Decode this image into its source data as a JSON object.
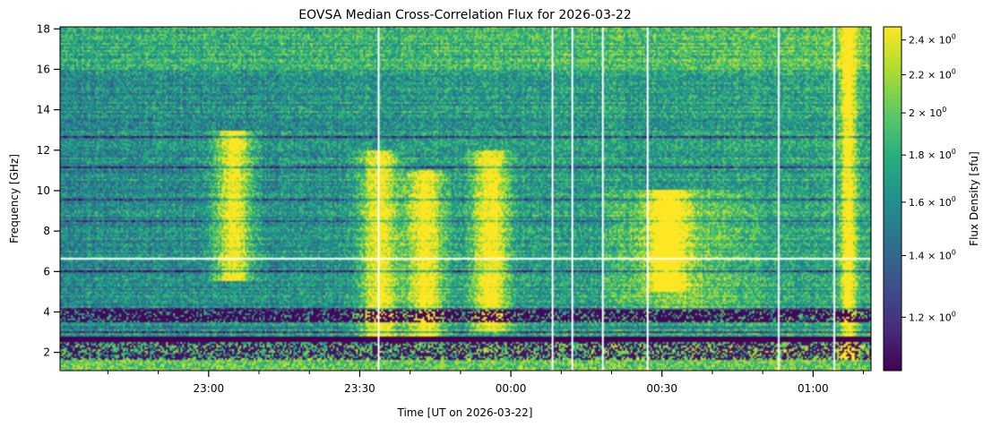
{
  "chart_data": {
    "type": "heatmap",
    "title": "EOVSA Median Cross-Correlation Flux for 2026-03-22",
    "xlabel": "Time [UT on 2026-03-22]",
    "ylabel": "Frequency [GHz]",
    "colorbar_label": "Flux Density [sfu]",
    "colormap": "viridis",
    "x_ticks": [
      {
        "label": "23:00",
        "minutes": -60
      },
      {
        "label": "23:30",
        "minutes": -30
      },
      {
        "label": "00:00",
        "minutes": 0
      },
      {
        "label": "00:30",
        "minutes": 30
      },
      {
        "label": "01:00",
        "minutes": 60
      }
    ],
    "xlim_minutes": [
      -89.5,
      71.5
    ],
    "y_ticks": [
      2,
      4,
      6,
      8,
      10,
      12,
      14,
      16,
      18
    ],
    "ylim": [
      1.1,
      18.1
    ],
    "colorbar_scale": "log",
    "clim": [
      1.05,
      2.48
    ],
    "colorbar_ticks": [
      {
        "value": 1.2,
        "label": "1.2 × 10^0"
      },
      {
        "value": 1.4,
        "label": "1.4 × 10^0"
      },
      {
        "value": 1.6,
        "label": "1.6 × 10^0"
      },
      {
        "value": 1.8,
        "label": "1.8 × 10^0"
      },
      {
        "value": 2.0,
        "label": "2 × 10^0"
      },
      {
        "value": 2.2,
        "label": "2.2 × 10^0"
      },
      {
        "value": 2.4,
        "label": "2.4 × 10^0"
      }
    ],
    "bright_bursts_minutes": [
      {
        "t": -55,
        "f_low": 5.5,
        "f_high": 13
      },
      {
        "t": -26,
        "f_low": 2.5,
        "f_high": 12
      },
      {
        "t": -17,
        "f_low": 2.5,
        "f_high": 11
      },
      {
        "t": -4,
        "f_low": 3,
        "f_high": 12
      },
      {
        "t": 31,
        "f_low": 5,
        "f_high": 10
      },
      {
        "t": 67,
        "f_low": 1.1,
        "f_high": 18.1
      }
    ]
  }
}
